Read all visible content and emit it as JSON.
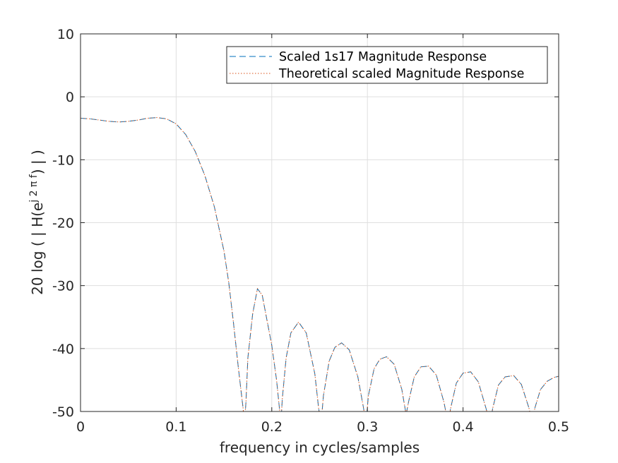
{
  "chart_data": {
    "type": "line",
    "title": "",
    "xlabel": "frequency in cycles/samples",
    "ylabel": {
      "prefix": "20  log ( | H(e",
      "superscript": "j 2 π f",
      "suffix": ") | )"
    },
    "xlim": [
      0,
      0.5
    ],
    "ylim": [
      -50,
      10
    ],
    "xticks": [
      0,
      0.1,
      0.2,
      0.3,
      0.4,
      0.5
    ],
    "xtick_labels": [
      "0",
      "0.1",
      "0.2",
      "0.3",
      "0.4",
      "0.5"
    ],
    "yticks": [
      -50,
      -40,
      -30,
      -20,
      -10,
      0,
      10
    ],
    "ytick_labels": [
      "-50",
      "-40",
      "-30",
      "-20",
      "-10",
      "0",
      "10"
    ],
    "grid": true,
    "legend_position": "top-right",
    "colors": {
      "series1": "#0072BD",
      "series2": "#D95319",
      "axis": "#262626",
      "grid": "#dfdfdf"
    },
    "series": [
      {
        "name": "Scaled 1s17 Magnitude Response",
        "style": "dashed",
        "x": [
          0,
          0.01,
          0.02,
          0.03,
          0.04,
          0.05,
          0.06,
          0.07,
          0.08,
          0.09,
          0.1,
          0.11,
          0.12,
          0.13,
          0.14,
          0.15,
          0.155,
          0.16,
          0.165,
          0.17,
          0.1715,
          0.173,
          0.175,
          0.18,
          0.185,
          0.19,
          0.2,
          0.205,
          0.208,
          0.2095,
          0.211,
          0.215,
          0.22,
          0.228,
          0.236,
          0.245,
          0.249,
          0.2515,
          0.254,
          0.26,
          0.266,
          0.273,
          0.281,
          0.29,
          0.296,
          0.2985,
          0.301,
          0.307,
          0.313,
          0.32,
          0.328,
          0.336,
          0.3405,
          0.343,
          0.349,
          0.356,
          0.364,
          0.372,
          0.38,
          0.3845,
          0.387,
          0.393,
          0.4,
          0.408,
          0.416,
          0.424,
          0.4285,
          0.431,
          0.437,
          0.444,
          0.453,
          0.461,
          0.469,
          0.4725,
          0.475,
          0.481,
          0.488,
          0.495,
          0.5
        ],
        "values": [
          -3.4,
          -3.5,
          -3.7,
          -3.9,
          -4.0,
          -3.9,
          -3.7,
          -3.4,
          -3.3,
          -3.5,
          -4.3,
          -6.0,
          -8.7,
          -12.5,
          -17.5,
          -24.5,
          -29.5,
          -36,
          -43,
          -49.5,
          -52,
          -48.5,
          -41.5,
          -34.5,
          -30.5,
          -31.5,
          -39.5,
          -45,
          -49.5,
          -52,
          -48,
          -41.5,
          -37.5,
          -35.8,
          -37.5,
          -44,
          -49.5,
          -52,
          -47.5,
          -42,
          -39.8,
          -39.1,
          -40.2,
          -44.5,
          -49.5,
          -52,
          -47.5,
          -43.2,
          -41.7,
          -41.3,
          -42.5,
          -46.5,
          -50.5,
          -48.5,
          -44.5,
          -42.9,
          -42.8,
          -44.2,
          -48.5,
          -52,
          -49.5,
          -45.5,
          -43.9,
          -43.7,
          -45.3,
          -49.5,
          -52,
          -49.5,
          -45.8,
          -44.5,
          -44.3,
          -45.7,
          -49.5,
          -52,
          -49.5,
          -46.5,
          -45.2,
          -44.6,
          -44.4
        ]
      },
      {
        "name": "Theoretical scaled Magnitude Response",
        "style": "dotted",
        "x": [
          0,
          0.01,
          0.02,
          0.03,
          0.04,
          0.05,
          0.06,
          0.07,
          0.08,
          0.09,
          0.1,
          0.11,
          0.12,
          0.13,
          0.14,
          0.15,
          0.155,
          0.16,
          0.165,
          0.17,
          0.1715,
          0.173,
          0.175,
          0.18,
          0.185,
          0.19,
          0.2,
          0.205,
          0.208,
          0.2095,
          0.211,
          0.215,
          0.22,
          0.228,
          0.236,
          0.245,
          0.249,
          0.2515,
          0.254,
          0.26,
          0.266,
          0.273,
          0.281,
          0.29,
          0.296,
          0.2985,
          0.301,
          0.307,
          0.313,
          0.32,
          0.328,
          0.336,
          0.3405,
          0.343,
          0.349,
          0.356,
          0.364,
          0.372,
          0.38,
          0.3845,
          0.387,
          0.393,
          0.4,
          0.408,
          0.416,
          0.424,
          0.4285,
          0.431,
          0.437,
          0.444,
          0.453,
          0.461,
          0.469,
          0.4725,
          0.475,
          0.481,
          0.488,
          0.495,
          0.5
        ],
        "values": [
          -3.4,
          -3.5,
          -3.7,
          -3.9,
          -4.0,
          -3.9,
          -3.7,
          -3.4,
          -3.3,
          -3.5,
          -4.3,
          -6.0,
          -8.7,
          -12.5,
          -17.5,
          -24.5,
          -29.5,
          -36,
          -43,
          -49.5,
          -52,
          -48.5,
          -41.5,
          -34.5,
          -30.5,
          -31.5,
          -39.5,
          -45,
          -49.5,
          -52,
          -48,
          -41.5,
          -37.5,
          -35.8,
          -37.5,
          -44,
          -49.5,
          -52,
          -47.5,
          -42,
          -39.8,
          -39.1,
          -40.2,
          -44.5,
          -49.5,
          -52,
          -47.5,
          -43.2,
          -41.7,
          -41.3,
          -42.5,
          -46.5,
          -50.5,
          -48.5,
          -44.5,
          -42.9,
          -42.8,
          -44.2,
          -48.5,
          -52,
          -49.5,
          -45.5,
          -43.9,
          -43.7,
          -45.3,
          -49.5,
          -52,
          -49.5,
          -45.8,
          -44.5,
          -44.3,
          -45.7,
          -49.5,
          -52,
          -49.5,
          -46.5,
          -45.2,
          -44.6,
          -44.4
        ]
      }
    ]
  }
}
